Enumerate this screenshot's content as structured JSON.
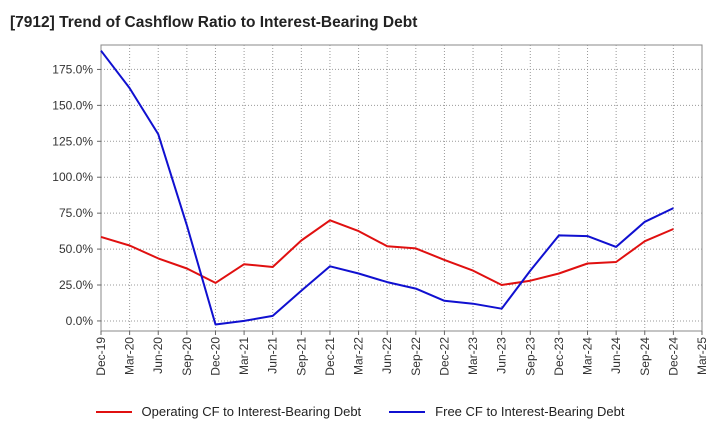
{
  "title": "[7912]  Trend of Cashflow Ratio to Interest-Bearing Debt",
  "chart_data": {
    "type": "line",
    "x": [
      "Dec-19",
      "Mar-20",
      "Jun-20",
      "Sep-20",
      "Dec-20",
      "Mar-21",
      "Jun-21",
      "Sep-21",
      "Dec-21",
      "Mar-22",
      "Jun-22",
      "Sep-22",
      "Dec-22",
      "Mar-23",
      "Jun-23",
      "Sep-23",
      "Dec-23",
      "Mar-24",
      "Jun-24",
      "Sep-24",
      "Dec-24",
      "Mar-25"
    ],
    "ylim": [
      -7,
      192
    ],
    "yticks": [
      0,
      25,
      50,
      75,
      100,
      125,
      150,
      175
    ],
    "ytick_labels": [
      "0.0%",
      "25.0%",
      "50.0%",
      "75.0%",
      "100.0%",
      "125.0%",
      "150.0%",
      "175.0%"
    ],
    "grid": true,
    "legend_position": "bottom",
    "series": [
      {
        "name": "Operating CF to Interest-Bearing Debt",
        "color": "#e01010",
        "values": [
          58.5,
          52.5,
          43.5,
          36.5,
          26.5,
          39.5,
          37.5,
          56.0,
          70.0,
          62.5,
          52.0,
          50.5,
          42.5,
          35.0,
          25.0,
          28.0,
          33.0,
          40.0,
          41.0,
          55.5,
          64.0,
          null
        ],
        "x_offset_first": 0
      },
      {
        "name": "Free CF to Interest-Bearing Debt",
        "color": "#1010d0",
        "values": [
          188.0,
          162.0,
          130.0,
          66.5,
          -2.5,
          0.0,
          3.5,
          21.0,
          38.0,
          33.0,
          27.0,
          22.5,
          14.0,
          12.0,
          8.5,
          35.0,
          59.5,
          59.0,
          51.5,
          69.0,
          78.5,
          null
        ]
      }
    ]
  }
}
